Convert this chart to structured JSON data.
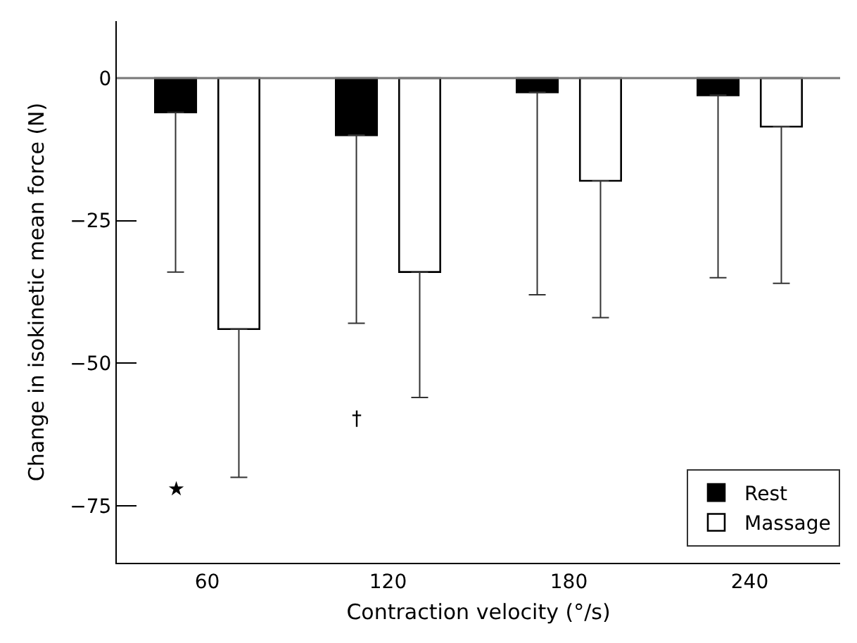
{
  "chart_data": {
    "type": "bar",
    "xlabel": "Contraction velocity (°/s)",
    "ylabel": "Change in isokinetic mean force (N)",
    "categories": [
      "60",
      "120",
      "180",
      "240"
    ],
    "series": [
      {
        "name": "Rest",
        "color": "#000000",
        "values": [
          -6,
          -10,
          -2.5,
          -3
        ],
        "errors": [
          [
            -34,
            -6
          ],
          [
            -43,
            -10
          ],
          [
            -38,
            -2.5
          ],
          [
            -35,
            -3
          ]
        ]
      },
      {
        "name": "Massage",
        "color": "#ffffff",
        "values": [
          -44,
          -34,
          -18,
          -8.5
        ],
        "errors": [
          [
            -70,
            -44
          ],
          [
            -56,
            -34
          ],
          [
            -42,
            -18
          ],
          [
            -36,
            -8.5
          ]
        ]
      }
    ],
    "ylim": [
      -85,
      10
    ],
    "yticks": [
      0,
      {
        "value": -25,
        "label": "−25"
      },
      {
        "value": -50,
        "label": "−50"
      },
      {
        "value": -75,
        "label": "−75"
      }
    ],
    "annotations": [
      "★",
      "†"
    ],
    "ref_lines": [
      {
        "axis": "y",
        "value": 0,
        "color": "#777777"
      }
    ],
    "grid": false,
    "legend": "bottom right"
  }
}
